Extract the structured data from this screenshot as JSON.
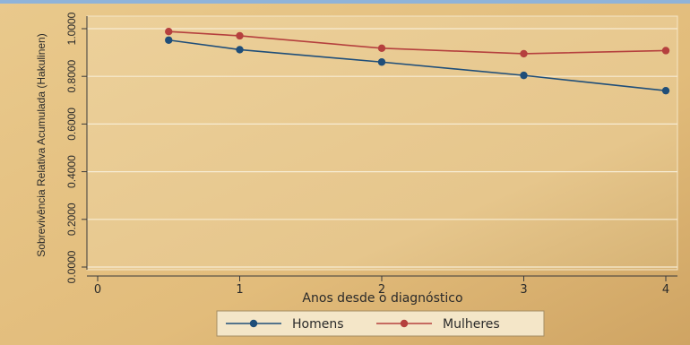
{
  "chart_data": {
    "type": "line",
    "xlabel": "Anos desde o diagnóstico",
    "ylabel": "Sobrevivência Relativa Acumulada (Hakulinen)",
    "xlim": [
      0,
      4
    ],
    "ylim": [
      0,
      1
    ],
    "xticks": [
      0,
      1,
      2,
      3,
      4
    ],
    "xtick_labels": [
      "0",
      "1",
      "2",
      "3",
      "4"
    ],
    "yticks": [
      0,
      0.2,
      0.4,
      0.6,
      0.8,
      1.0
    ],
    "ytick_labels": [
      "0.0000",
      "0.2000",
      "0.4000",
      "0.6000",
      "0.8000",
      "1.0000"
    ],
    "grid": true,
    "legend_position": "bottom",
    "series": [
      {
        "name": "Homens",
        "color": "#1f4e79",
        "x": [
          0.5,
          1,
          2,
          3,
          4
        ],
        "values": [
          0.952,
          0.912,
          0.86,
          0.804,
          0.74
        ]
      },
      {
        "name": "Mulheres",
        "color": "#b5403e",
        "x": [
          0.5,
          1,
          2,
          3,
          4
        ],
        "values": [
          0.988,
          0.97,
          0.918,
          0.895,
          0.908
        ]
      }
    ]
  }
}
